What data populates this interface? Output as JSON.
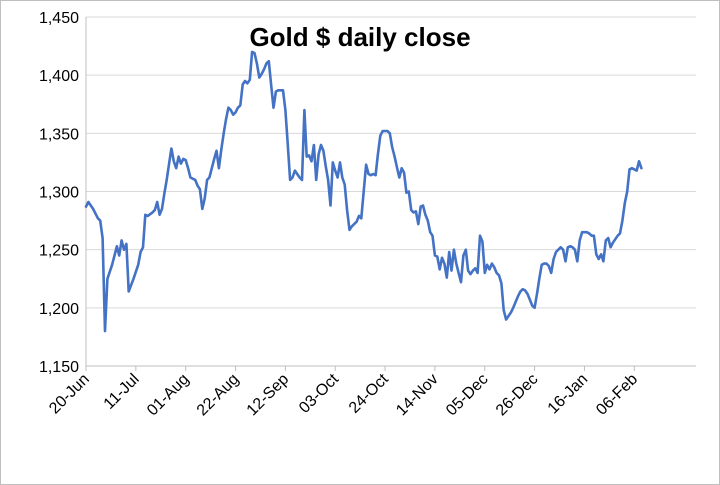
{
  "chart_data": {
    "type": "line",
    "title": "Gold $ daily close",
    "xlabel": "",
    "ylabel": "",
    "ylim": [
      1150,
      1450
    ],
    "yticks": [
      1150,
      1200,
      1250,
      1300,
      1350,
      1400,
      1450
    ],
    "ytick_labels": [
      "1,150",
      "1,200",
      "1,250",
      "1,300",
      "1,350",
      "1,400",
      "1,450"
    ],
    "xtick_labels": [
      "20-Jun",
      "11-Jul",
      "01-Aug",
      "22-Aug",
      "12-Sep",
      "03-Oct",
      "24-Oct",
      "14-Nov",
      "05-Dec",
      "26-Dec",
      "16-Jan",
      "06-Feb"
    ],
    "xlim_days": [
      0,
      257
    ],
    "grid": "horizontal",
    "line_color": "#4472c4",
    "series": [
      {
        "points": [
          [
            0,
            1287
          ],
          [
            1,
            1291
          ],
          [
            3,
            1285
          ],
          [
            5,
            1277
          ],
          [
            6,
            1275
          ],
          [
            7,
            1260
          ],
          [
            8,
            1180
          ],
          [
            9,
            1225
          ],
          [
            11,
            1237
          ],
          [
            13,
            1253
          ],
          [
            14,
            1245
          ],
          [
            15,
            1258
          ],
          [
            16,
            1250
          ],
          [
            17,
            1255
          ],
          [
            18,
            1214
          ],
          [
            20,
            1225
          ],
          [
            22,
            1237
          ],
          [
            23,
            1248
          ],
          [
            24,
            1252
          ],
          [
            25,
            1280
          ],
          [
            26,
            1279
          ],
          [
            28,
            1282
          ],
          [
            29,
            1284
          ],
          [
            30,
            1291
          ],
          [
            31,
            1280
          ],
          [
            32,
            1285
          ],
          [
            33,
            1298
          ],
          [
            34,
            1310
          ],
          [
            35,
            1324
          ],
          [
            36,
            1337
          ],
          [
            37,
            1326
          ],
          [
            38,
            1320
          ],
          [
            39,
            1330
          ],
          [
            40,
            1324
          ],
          [
            41,
            1328
          ],
          [
            42,
            1327
          ],
          [
            43,
            1320
          ],
          [
            44,
            1312
          ],
          [
            46,
            1310
          ],
          [
            47,
            1305
          ],
          [
            48,
            1302
          ],
          [
            49,
            1285
          ],
          [
            50,
            1294
          ],
          [
            51,
            1310
          ],
          [
            52,
            1312
          ],
          [
            53,
            1320
          ],
          [
            54,
            1328
          ],
          [
            55,
            1335
          ],
          [
            56,
            1320
          ],
          [
            57,
            1336
          ],
          [
            58,
            1350
          ],
          [
            59,
            1362
          ],
          [
            60,
            1372
          ],
          [
            61,
            1370
          ],
          [
            62,
            1366
          ],
          [
            63,
            1368
          ],
          [
            64,
            1372
          ],
          [
            65,
            1374
          ],
          [
            66,
            1392
          ],
          [
            67,
            1395
          ],
          [
            68,
            1393
          ],
          [
            69,
            1396
          ],
          [
            70,
            1420
          ],
          [
            71,
            1419
          ],
          [
            72,
            1410
          ],
          [
            73,
            1398
          ],
          [
            74,
            1401
          ],
          [
            75,
            1405
          ],
          [
            76,
            1410
          ],
          [
            77,
            1412
          ],
          [
            78,
            1392
          ],
          [
            79,
            1372
          ],
          [
            80,
            1386
          ],
          [
            81,
            1387
          ],
          [
            82,
            1387
          ],
          [
            83,
            1387
          ],
          [
            84,
            1370
          ],
          [
            85,
            1340
          ],
          [
            86,
            1310
          ],
          [
            87,
            1312
          ],
          [
            88,
            1318
          ],
          [
            89,
            1315
          ],
          [
            90,
            1312
          ],
          [
            91,
            1310
          ],
          [
            92,
            1370
          ],
          [
            93,
            1330
          ],
          [
            94,
            1331
          ],
          [
            95,
            1326
          ],
          [
            96,
            1340
          ],
          [
            97,
            1310
          ],
          [
            98,
            1332
          ],
          [
            99,
            1340
          ],
          [
            100,
            1335
          ],
          [
            101,
            1322
          ],
          [
            102,
            1310
          ],
          [
            103,
            1288
          ],
          [
            104,
            1325
          ],
          [
            105,
            1318
          ],
          [
            106,
            1312
          ],
          [
            107,
            1325
          ],
          [
            108,
            1312
          ],
          [
            109,
            1306
          ],
          [
            110,
            1284
          ],
          [
            111,
            1267
          ],
          [
            112,
            1270
          ],
          [
            114,
            1274
          ],
          [
            115,
            1279
          ],
          [
            116,
            1277
          ],
          [
            117,
            1300
          ],
          [
            118,
            1323
          ],
          [
            119,
            1315
          ],
          [
            120,
            1314
          ],
          [
            121,
            1315
          ],
          [
            122,
            1314
          ],
          [
            123,
            1332
          ],
          [
            124,
            1348
          ],
          [
            125,
            1352
          ],
          [
            127,
            1352
          ],
          [
            128,
            1350
          ],
          [
            129,
            1338
          ],
          [
            130,
            1330
          ],
          [
            131,
            1321
          ],
          [
            132,
            1312
          ],
          [
            133,
            1320
          ],
          [
            134,
            1316
          ],
          [
            135,
            1299
          ],
          [
            136,
            1300
          ],
          [
            137,
            1284
          ],
          [
            138,
            1282
          ],
          [
            139,
            1283
          ],
          [
            140,
            1272
          ],
          [
            141,
            1287
          ],
          [
            142,
            1288
          ],
          [
            143,
            1280
          ],
          [
            144,
            1275
          ],
          [
            145,
            1265
          ],
          [
            146,
            1262
          ],
          [
            147,
            1245
          ],
          [
            148,
            1244
          ],
          [
            149,
            1233
          ],
          [
            150,
            1243
          ],
          [
            151,
            1238
          ],
          [
            152,
            1226
          ],
          [
            153,
            1248
          ],
          [
            154,
            1232
          ],
          [
            155,
            1250
          ],
          [
            156,
            1238
          ],
          [
            157,
            1230
          ],
          [
            158,
            1222
          ],
          [
            159,
            1245
          ],
          [
            160,
            1250
          ],
          [
            161,
            1232
          ],
          [
            162,
            1229
          ],
          [
            163,
            1232
          ],
          [
            164,
            1234
          ],
          [
            165,
            1230
          ],
          [
            166,
            1262
          ],
          [
            167,
            1257
          ],
          [
            168,
            1230
          ],
          [
            169,
            1237
          ],
          [
            170,
            1233
          ],
          [
            171,
            1238
          ],
          [
            172,
            1235
          ],
          [
            173,
            1230
          ],
          [
            174,
            1228
          ],
          [
            175,
            1221
          ],
          [
            176,
            1198
          ],
          [
            177,
            1190
          ],
          [
            178,
            1193
          ],
          [
            179,
            1196
          ],
          [
            180,
            1200
          ],
          [
            181,
            1205
          ],
          [
            182,
            1210
          ],
          [
            183,
            1214
          ],
          [
            184,
            1216
          ],
          [
            185,
            1215
          ],
          [
            186,
            1212
          ],
          [
            187,
            1207
          ],
          [
            188,
            1202
          ],
          [
            189,
            1200
          ],
          [
            190,
            1212
          ],
          [
            191,
            1225
          ],
          [
            192,
            1237
          ],
          [
            193,
            1238
          ],
          [
            194,
            1238
          ],
          [
            195,
            1236
          ],
          [
            196,
            1230
          ],
          [
            197,
            1242
          ],
          [
            198,
            1248
          ],
          [
            199,
            1250
          ],
          [
            200,
            1252
          ],
          [
            201,
            1250
          ],
          [
            202,
            1240
          ],
          [
            203,
            1252
          ],
          [
            204,
            1253
          ],
          [
            205,
            1252
          ],
          [
            206,
            1250
          ],
          [
            207,
            1240
          ],
          [
            208,
            1258
          ],
          [
            209,
            1265
          ],
          [
            210,
            1265
          ],
          [
            211,
            1265
          ],
          [
            212,
            1264
          ],
          [
            213,
            1262
          ],
          [
            214,
            1262
          ],
          [
            215,
            1246
          ],
          [
            216,
            1242
          ],
          [
            217,
            1246
          ],
          [
            218,
            1240
          ],
          [
            219,
            1258
          ],
          [
            220,
            1260
          ],
          [
            221,
            1252
          ],
          [
            222,
            1256
          ],
          [
            223,
            1259
          ],
          [
            224,
            1262
          ],
          [
            225,
            1264
          ],
          [
            226,
            1275
          ],
          [
            227,
            1290
          ],
          [
            228,
            1300
          ],
          [
            229,
            1319
          ],
          [
            230,
            1320
          ],
          [
            232,
            1318
          ],
          [
            233,
            1326
          ],
          [
            234,
            1320
          ]
        ]
      }
    ]
  }
}
